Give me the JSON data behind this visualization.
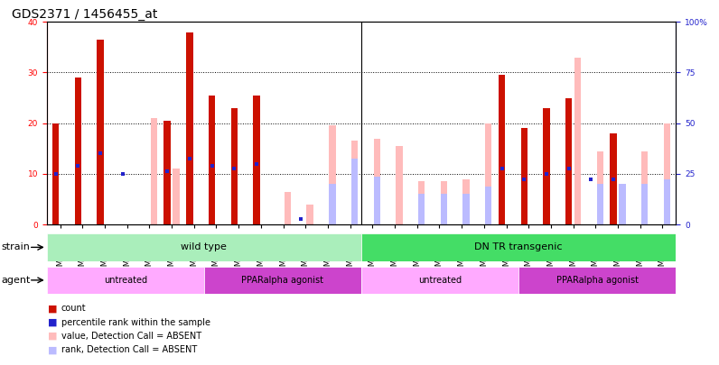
{
  "title": "GDS2371 / 1456455_at",
  "samples": [
    "GSM67362",
    "GSM67363",
    "GSM67364",
    "GSM67365",
    "GSM67366",
    "GSM67367",
    "GSM67368",
    "GSM67376",
    "GSM67377",
    "GSM67378",
    "GSM67379",
    "GSM67380",
    "GSM67381",
    "GSM67382",
    "GSM67369",
    "GSM67370",
    "GSM67371",
    "GSM67372",
    "GSM67373",
    "GSM67374",
    "GSM67375",
    "GSM67383",
    "GSM67384",
    "GSM67385",
    "GSM67386",
    "GSM67387",
    "GSM67388",
    "GSM67389"
  ],
  "count": [
    20,
    29,
    36.5,
    0,
    0,
    20.5,
    38,
    25.5,
    23,
    25.5,
    0,
    0,
    0,
    0,
    0,
    0,
    0,
    0,
    0,
    0,
    29.5,
    19,
    23,
    25,
    0,
    18,
    0,
    0
  ],
  "percentile": [
    10,
    11.5,
    14,
    10,
    0,
    10.5,
    13,
    11.5,
    11,
    12,
    0,
    1,
    0,
    0,
    0,
    0,
    0,
    0,
    0,
    0,
    11,
    9,
    10,
    11,
    9,
    9,
    0,
    0
  ],
  "value_absent": [
    0,
    0,
    0,
    0,
    21,
    11,
    0,
    0,
    0,
    0,
    6.5,
    4,
    19.5,
    16.5,
    17,
    15.5,
    8.5,
    8.5,
    9,
    20,
    0,
    0,
    0,
    33,
    14.5,
    0,
    14.5,
    20
  ],
  "rank_absent": [
    0,
    0,
    0,
    0,
    0,
    0,
    0,
    0,
    0,
    0,
    0,
    0,
    8,
    13,
    9.5,
    0,
    6,
    6,
    6,
    7.5,
    0,
    0,
    0,
    0,
    8,
    8,
    8,
    9
  ],
  "ylim_left": [
    0,
    40
  ],
  "ylim_right": [
    0,
    100
  ],
  "yticks_left": [
    0,
    10,
    20,
    30,
    40
  ],
  "yticks_right": [
    0,
    25,
    50,
    75,
    100
  ],
  "yticklabels_right": [
    "0",
    "25",
    "50",
    "75",
    "100%"
  ],
  "color_count": "#cc1100",
  "color_percentile": "#2222cc",
  "color_value_absent": "#ffbbbb",
  "color_rank_absent": "#bbbbff",
  "color_strain_wt": "#aaeebb",
  "color_strain_dn": "#44dd66",
  "color_agent_untreated": "#ffaaff",
  "color_agent_ppar": "#cc44cc",
  "bar_width": 0.3,
  "background_color": "#ffffff",
  "title_fontsize": 10,
  "tick_fontsize": 6.5,
  "label_fontsize": 8
}
